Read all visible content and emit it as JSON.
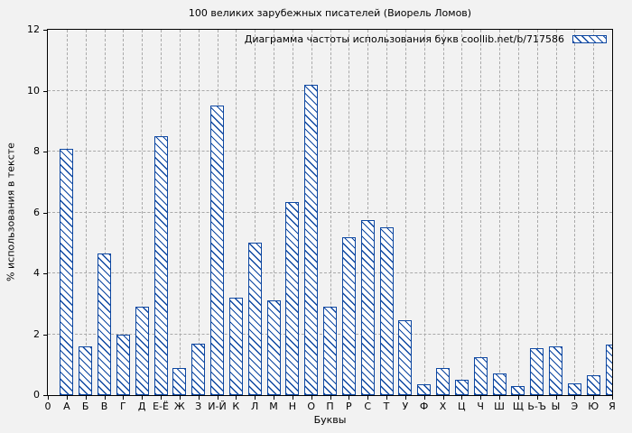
{
  "chart_data": {
    "type": "bar",
    "title": "100 великих зарубежных писателей (Виорель Ломов)",
    "legend": "Диаграмма частоты использования букв coollib.net/b/717586",
    "legend_position": "top-right",
    "xlabel": "Буквы",
    "ylabel": "% использования в тексте",
    "ylim": [
      0,
      12
    ],
    "yticks": [
      0,
      2,
      4,
      6,
      8,
      10,
      12
    ],
    "x_origin_label": "0",
    "grid": true,
    "bar_style": "white fill with blue diagonal hatch",
    "categories": [
      "А",
      "Б",
      "В",
      "Г",
      "Д",
      "Е-Ё",
      "Ж",
      "З",
      "И-Й",
      "К",
      "Л",
      "М",
      "Н",
      "О",
      "П",
      "Р",
      "С",
      "Т",
      "У",
      "Ф",
      "Х",
      "Ц",
      "Ч",
      "Ш",
      "Щ",
      "Ь-Ъ",
      "Ы",
      "Э",
      "Ю",
      "Я"
    ],
    "values": [
      8.1,
      1.6,
      4.65,
      2.0,
      2.9,
      8.5,
      0.9,
      1.7,
      9.5,
      3.2,
      5.0,
      3.1,
      6.35,
      10.2,
      2.9,
      5.2,
      5.75,
      5.5,
      2.45,
      0.35,
      0.9,
      0.5,
      1.25,
      0.7,
      0.3,
      1.55,
      1.6,
      0.4,
      0.65,
      1.65
    ]
  },
  "colors": {
    "background": "#f2f2f2",
    "bar_edge": "#0d47a1",
    "bar_fill": "#ffffff",
    "grid": "#a9a9a9",
    "axis": "#000000"
  }
}
